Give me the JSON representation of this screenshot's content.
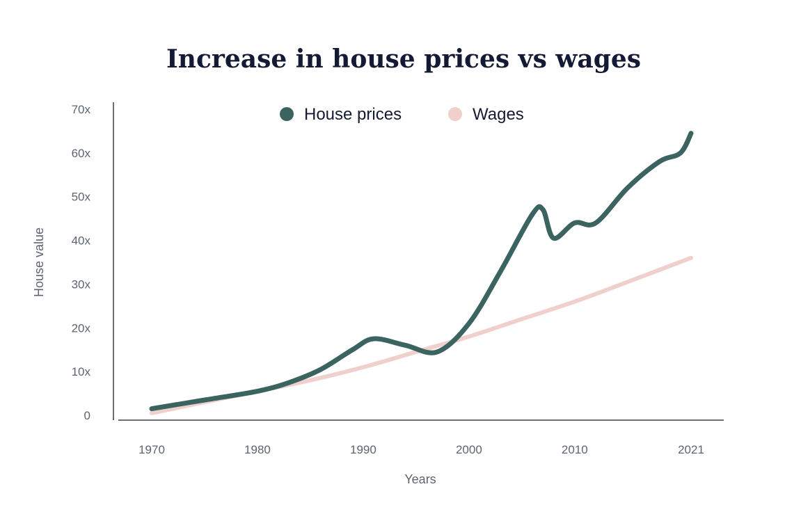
{
  "chart_data": {
    "type": "line",
    "title": "Increase in house prices vs wages",
    "xlabel": "Years",
    "ylabel": "House value",
    "x_ticks": [
      1970,
      1980,
      1990,
      2000,
      2010,
      2021
    ],
    "y_ticks": [
      {
        "value": 0,
        "label": "0"
      },
      {
        "value": 10,
        "label": "10x"
      },
      {
        "value": 20,
        "label": "20x"
      },
      {
        "value": 30,
        "label": "30x"
      },
      {
        "value": 40,
        "label": "40x"
      },
      {
        "value": 50,
        "label": "50x"
      },
      {
        "value": 60,
        "label": "60x"
      },
      {
        "value": 70,
        "label": "70x"
      }
    ],
    "xlim": [
      1967,
      2024
    ],
    "ylim": [
      0,
      70
    ],
    "grid": false,
    "legend_position": "top-center",
    "series": [
      {
        "name": "House prices",
        "color": "#3b6360",
        "x": [
          1970,
          1975,
          1980,
          1983,
          1986,
          1989,
          1991,
          1994,
          1997,
          2000,
          2003,
          2006,
          2007,
          2008,
          2010,
          2012,
          2015,
          2018,
          2020,
          2021
        ],
        "y": [
          1.5,
          3.5,
          5.5,
          7.5,
          10.5,
          15,
          17.5,
          16,
          14.5,
          21,
          33,
          46,
          47,
          40.5,
          44,
          44,
          52,
          58,
          60,
          64.5
        ]
      },
      {
        "name": "Wages",
        "color": "#efd0cc",
        "x": [
          1970,
          1975,
          1980,
          1985,
          1990,
          1995,
          2000,
          2005,
          2010,
          2015,
          2021
        ],
        "y": [
          0.5,
          3,
          5.5,
          8,
          11,
          14.5,
          18,
          22,
          26,
          30.5,
          36
        ]
      }
    ]
  }
}
